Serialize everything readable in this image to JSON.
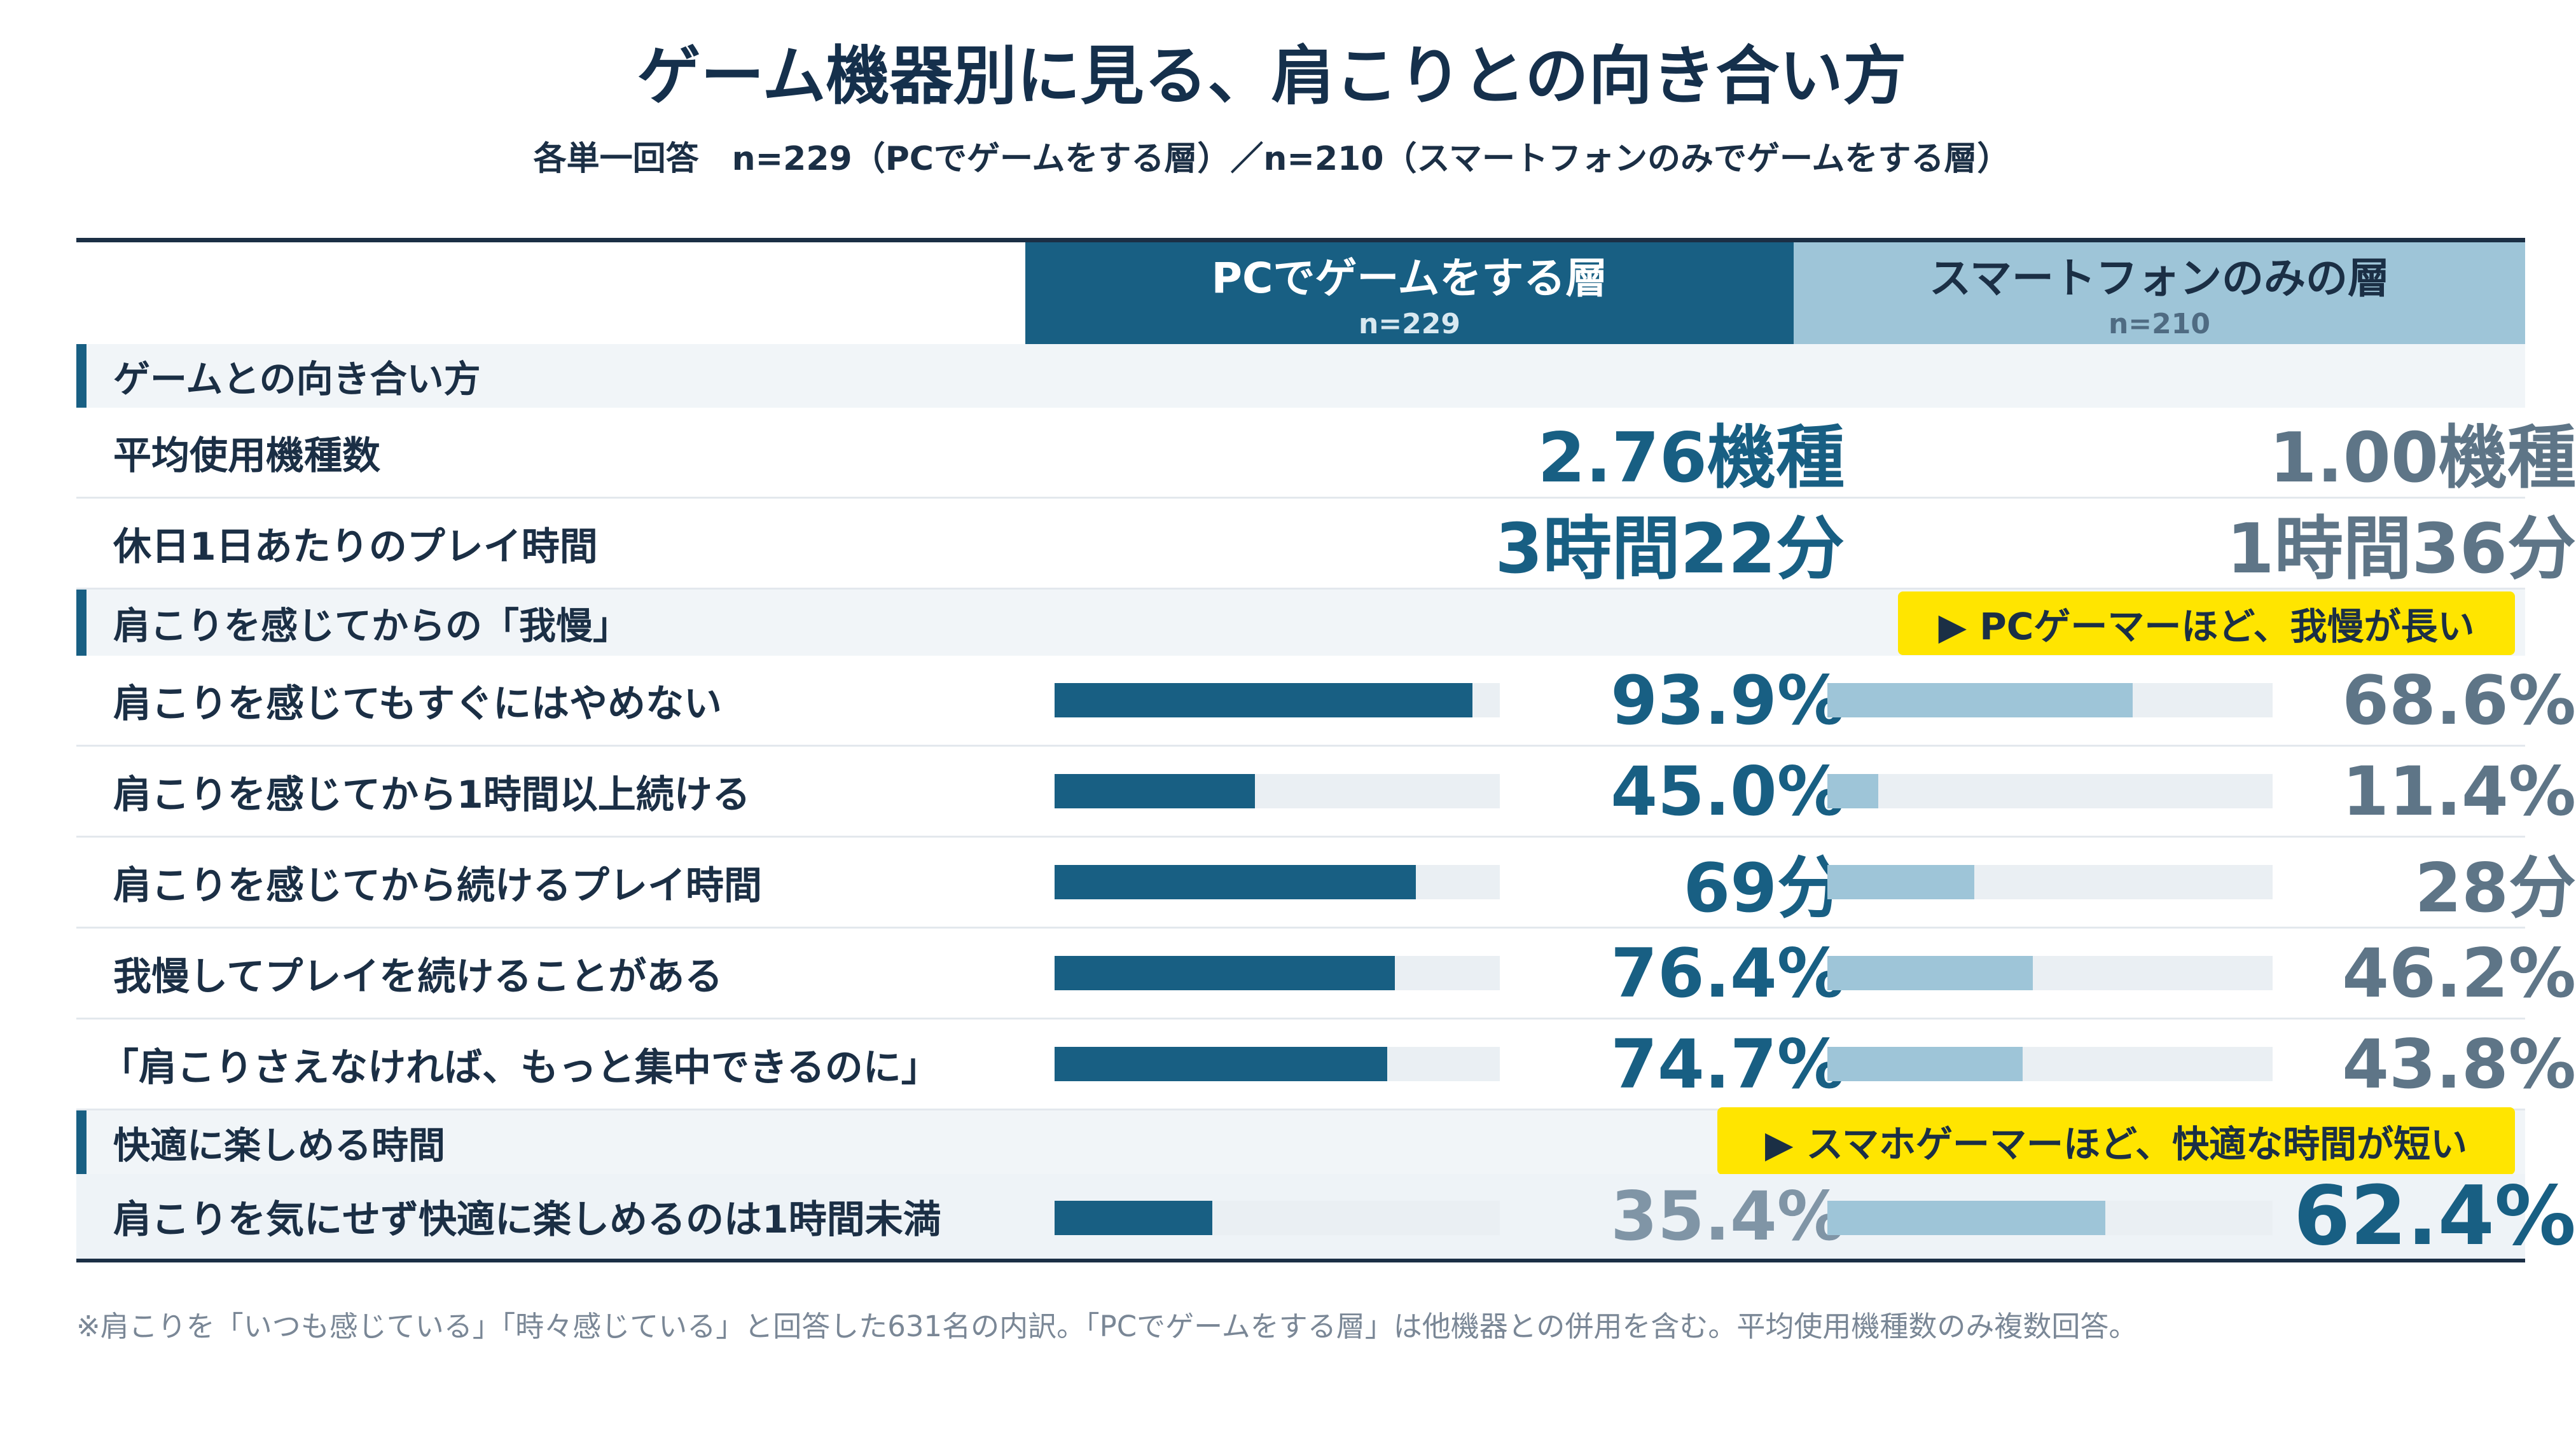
{
  "title": "ゲーム機器別に見る、肩こりとの向き合い方",
  "subtitle": "各単一回答　n=229（PCでゲームをする層）／n=210（スマートフォンのみでゲームをする層）",
  "columns": {
    "pc": {
      "label": "PCでゲームをする層",
      "n": "n=229"
    },
    "smartphone": {
      "label": "スマートフォンのみの層",
      "n": "n=210"
    }
  },
  "colors": {
    "pc": "#185f83",
    "smartphone": "#9ec5d8",
    "callout": "#ffe500"
  },
  "chart_data": {
    "type": "table",
    "sections": [
      {
        "label": "ゲームとの向き合い方",
        "rows": [
          {
            "label": "平均使用機種数",
            "pc": "2.76機種",
            "smartphone": "1.00機種"
          },
          {
            "label": "休日1日あたりのプレイ時間",
            "pc": "3時間22分",
            "smartphone": "1時間36分"
          }
        ]
      },
      {
        "label": "肩こりを感じてからの「我慢」",
        "callout": "▶ PCゲーマーほど、我慢が長い",
        "rows": [
          {
            "label": "肩こりを感じてもすぐにはやめない",
            "pc": "93.9%",
            "smartphone": "68.6%",
            "pc_value": 93.9,
            "smartphone_value": 68.6,
            "max": 100
          },
          {
            "label": "肩こりを感じてから1時間以上続ける",
            "pc": "45.0%",
            "smartphone": "11.4%",
            "pc_value": 45.0,
            "smartphone_value": 11.4,
            "max": 100
          },
          {
            "label": "肩こりを感じてから続けるプレイ時間",
            "pc": "69分",
            "smartphone": "28分",
            "pc_value": 69,
            "smartphone_value": 28,
            "max": 85
          },
          {
            "label": "我慢してプレイを続けることがある",
            "pc": "76.4%",
            "smartphone": "46.2%",
            "pc_value": 76.4,
            "smartphone_value": 46.2,
            "max": 100
          },
          {
            "label": "「肩こりさえなければ、もっと集中できるのに」",
            "pc": "74.7%",
            "smartphone": "43.8%",
            "pc_value": 74.7,
            "smartphone_value": 43.8,
            "max": 100
          }
        ]
      },
      {
        "label": "快適に楽しめる時間",
        "callout": "▶ スマホゲーマーほど、快適な時間が短い",
        "rows": [
          {
            "label": "肩こりを気にせず快適に楽しめるのは1時間未満",
            "pc": "35.4%",
            "smartphone": "62.4%",
            "pc_value": 35.4,
            "smartphone_value": 62.4,
            "max": 100
          }
        ]
      }
    ]
  },
  "footnote": "※肩こりを「いつも感じている」「時々感じている」と回答した631名の内訳。「PCでゲームをする層」は他機器との併用を含む。平均使用機種数のみ複数回答。"
}
